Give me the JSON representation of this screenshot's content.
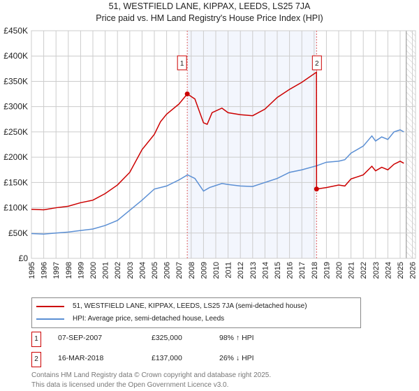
{
  "chart_data": {
    "type": "line",
    "title": "51, WESTFIELD LANE, KIPPAX, LEEDS, LS25 7JA",
    "subtitle": "Price paid vs. HM Land Registry's House Price Index (HPI)",
    "xlim": [
      1995,
      2026
    ],
    "ylim": [
      0,
      450000
    ],
    "x_ticks": [
      "1995",
      "1996",
      "1997",
      "1998",
      "1999",
      "2000",
      "2001",
      "2002",
      "2003",
      "2004",
      "2005",
      "2006",
      "2007",
      "2008",
      "2009",
      "2010",
      "2011",
      "2012",
      "2013",
      "2014",
      "2015",
      "2016",
      "2017",
      "2018",
      "2019",
      "2020",
      "2021",
      "2022",
      "2023",
      "2024",
      "2025",
      "2026"
    ],
    "y_ticks": [
      {
        "v": 0,
        "label": "£0"
      },
      {
        "v": 50000,
        "label": "£50K"
      },
      {
        "v": 100000,
        "label": "£100K"
      },
      {
        "v": 150000,
        "label": "£150K"
      },
      {
        "v": 200000,
        "label": "£200K"
      },
      {
        "v": 250000,
        "label": "£250K"
      },
      {
        "v": 300000,
        "label": "£300K"
      },
      {
        "v": 350000,
        "label": "£350K"
      },
      {
        "v": 400000,
        "label": "£400K"
      },
      {
        "v": 450000,
        "label": "£450K"
      }
    ],
    "grid": true,
    "shaded_range": [
      2007.68,
      2018.2
    ],
    "hatched_from": 2025.5,
    "series": [
      {
        "name": "51, WESTFIELD LANE, KIPPAX, LEEDS, LS25 7JA (semi-detached house)",
        "color": "#cc0000",
        "points": [
          [
            1995,
            97000
          ],
          [
            1996,
            96000
          ],
          [
            1997,
            100000
          ],
          [
            1998,
            103000
          ],
          [
            1999,
            110000
          ],
          [
            2000,
            115000
          ],
          [
            2001,
            128000
          ],
          [
            2002,
            145000
          ],
          [
            2003,
            170000
          ],
          [
            2004,
            215000
          ],
          [
            2005,
            245000
          ],
          [
            2005.5,
            270000
          ],
          [
            2006,
            285000
          ],
          [
            2007,
            305000
          ],
          [
            2007.68,
            325000
          ],
          [
            2008.3,
            315000
          ],
          [
            2009,
            268000
          ],
          [
            2009.3,
            265000
          ],
          [
            2009.7,
            288000
          ],
          [
            2010.5,
            297000
          ],
          [
            2011,
            288000
          ],
          [
            2012,
            284000
          ],
          [
            2013,
            282000
          ],
          [
            2014,
            295000
          ],
          [
            2015,
            318000
          ],
          [
            2016,
            334000
          ],
          [
            2017,
            348000
          ],
          [
            2018.19,
            368000
          ],
          [
            2018.2,
            137000
          ],
          [
            2019,
            140000
          ],
          [
            2020,
            145000
          ],
          [
            2020.5,
            143000
          ],
          [
            2021,
            157000
          ],
          [
            2022,
            165000
          ],
          [
            2022.7,
            182000
          ],
          [
            2023,
            173000
          ],
          [
            2023.5,
            180000
          ],
          [
            2024,
            175000
          ],
          [
            2024.5,
            186000
          ],
          [
            2025,
            192000
          ],
          [
            2025.3,
            188000
          ]
        ]
      },
      {
        "name": "HPI: Average price, semi-detached house, Leeds",
        "color": "#5b8fd4",
        "points": [
          [
            1995,
            49000
          ],
          [
            1996,
            48000
          ],
          [
            1997,
            50000
          ],
          [
            1998,
            52000
          ],
          [
            1999,
            55000
          ],
          [
            2000,
            58000
          ],
          [
            2001,
            65000
          ],
          [
            2002,
            75000
          ],
          [
            2003,
            95000
          ],
          [
            2004,
            115000
          ],
          [
            2005,
            137000
          ],
          [
            2006,
            143000
          ],
          [
            2007,
            155000
          ],
          [
            2007.7,
            165000
          ],
          [
            2008.3,
            158000
          ],
          [
            2009,
            133000
          ],
          [
            2009.5,
            140000
          ],
          [
            2010.5,
            148000
          ],
          [
            2011,
            146000
          ],
          [
            2012,
            143000
          ],
          [
            2013,
            142000
          ],
          [
            2014,
            150000
          ],
          [
            2015,
            158000
          ],
          [
            2016,
            170000
          ],
          [
            2017,
            175000
          ],
          [
            2018.2,
            183000
          ],
          [
            2019,
            190000
          ],
          [
            2020,
            192000
          ],
          [
            2020.5,
            195000
          ],
          [
            2021,
            208000
          ],
          [
            2022,
            222000
          ],
          [
            2022.7,
            242000
          ],
          [
            2023,
            232000
          ],
          [
            2023.5,
            240000
          ],
          [
            2024,
            235000
          ],
          [
            2024.5,
            250000
          ],
          [
            2025,
            254000
          ],
          [
            2025.3,
            250000
          ]
        ]
      }
    ],
    "annotations": [
      {
        "label": "1",
        "x": 2007.68,
        "y": 325000
      },
      {
        "label": "2",
        "x": 2018.2,
        "y": 137000
      }
    ]
  },
  "legend": {
    "red": "51, WESTFIELD LANE, KIPPAX, LEEDS, LS25 7JA (semi-detached house)",
    "blue": "HPI: Average price, semi-detached house, Leeds"
  },
  "sales": [
    {
      "num": "1",
      "date": "07-SEP-2007",
      "price": "£325,000",
      "hpi": "98% ↑ HPI"
    },
    {
      "num": "2",
      "date": "16-MAR-2018",
      "price": "£137,000",
      "hpi": "26% ↓ HPI"
    }
  ],
  "footer": {
    "line1": "Contains HM Land Registry data © Crown copyright and database right 2025.",
    "line2": "This data is licensed under the Open Government Licence v3.0."
  }
}
